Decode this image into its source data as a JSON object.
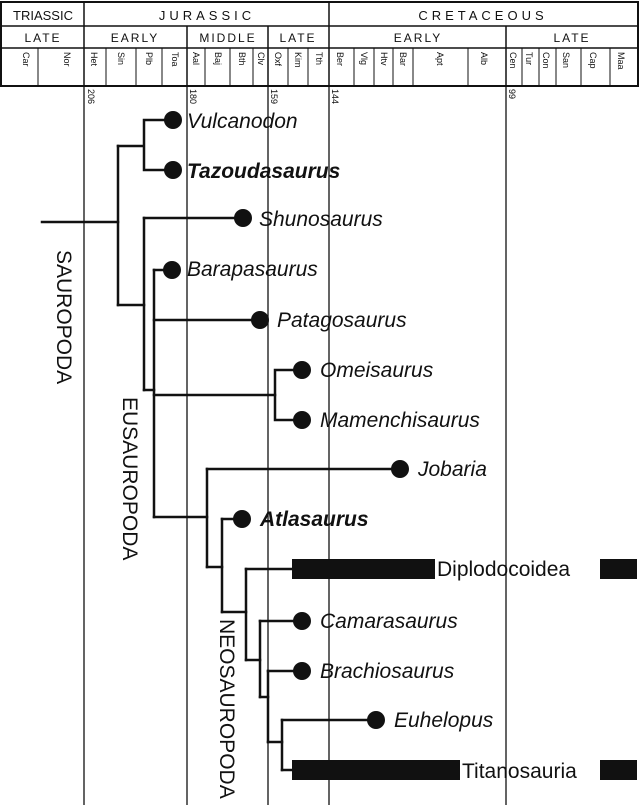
{
  "timescale": {
    "periods": [
      "TRIASSIC",
      "JURASSIC",
      "CRETACEOUS"
    ],
    "epochs": [
      "LATE",
      "EARLY",
      "MIDDLE",
      "LATE",
      "EARLY",
      "LATE"
    ],
    "stages": [
      "Car",
      "Nor",
      "Het",
      "Sin",
      "Plb",
      "Toa",
      "Aal",
      "Baj",
      "Bth",
      "Clv",
      "Oxf",
      "Kim",
      "Tth",
      "Ber",
      "Vlg",
      "Htv",
      "Bar",
      "Apt",
      "Alb",
      "Cen",
      "Tur",
      "Con",
      "San",
      "Cap",
      "Maa"
    ],
    "ages_ma": [
      "206",
      "180",
      "159",
      "144",
      "99"
    ]
  },
  "taxa": {
    "vulcanodon": "Vulcanodon",
    "tazoudasaurus": "Tazoudasaurus",
    "shunosaurus": "Shunosaurus",
    "barapasaurus": "Barapasaurus",
    "patagosaurus": "Patagosaurus",
    "omeisaurus": "Omeisaurus",
    "mamenchisaurus": "Mamenchisaurus",
    "jobaria": "Jobaria",
    "atlasaurus": "Atlasaurus",
    "diplodocoidea": "Diplodocoidea",
    "camarasaurus": "Camarasaurus",
    "brachiosaurus": "Brachiosaurus",
    "euhelopus": "Euhelopus",
    "titanosauria": "Titanosauria"
  },
  "clades": {
    "sauropoda": "SAUROPODA",
    "eusauropoda": "EUSAUROPODA",
    "neosauropoda": "NEOSAUROPODA"
  },
  "colors": {
    "ink": "#111111",
    "background": "#ffffff"
  }
}
